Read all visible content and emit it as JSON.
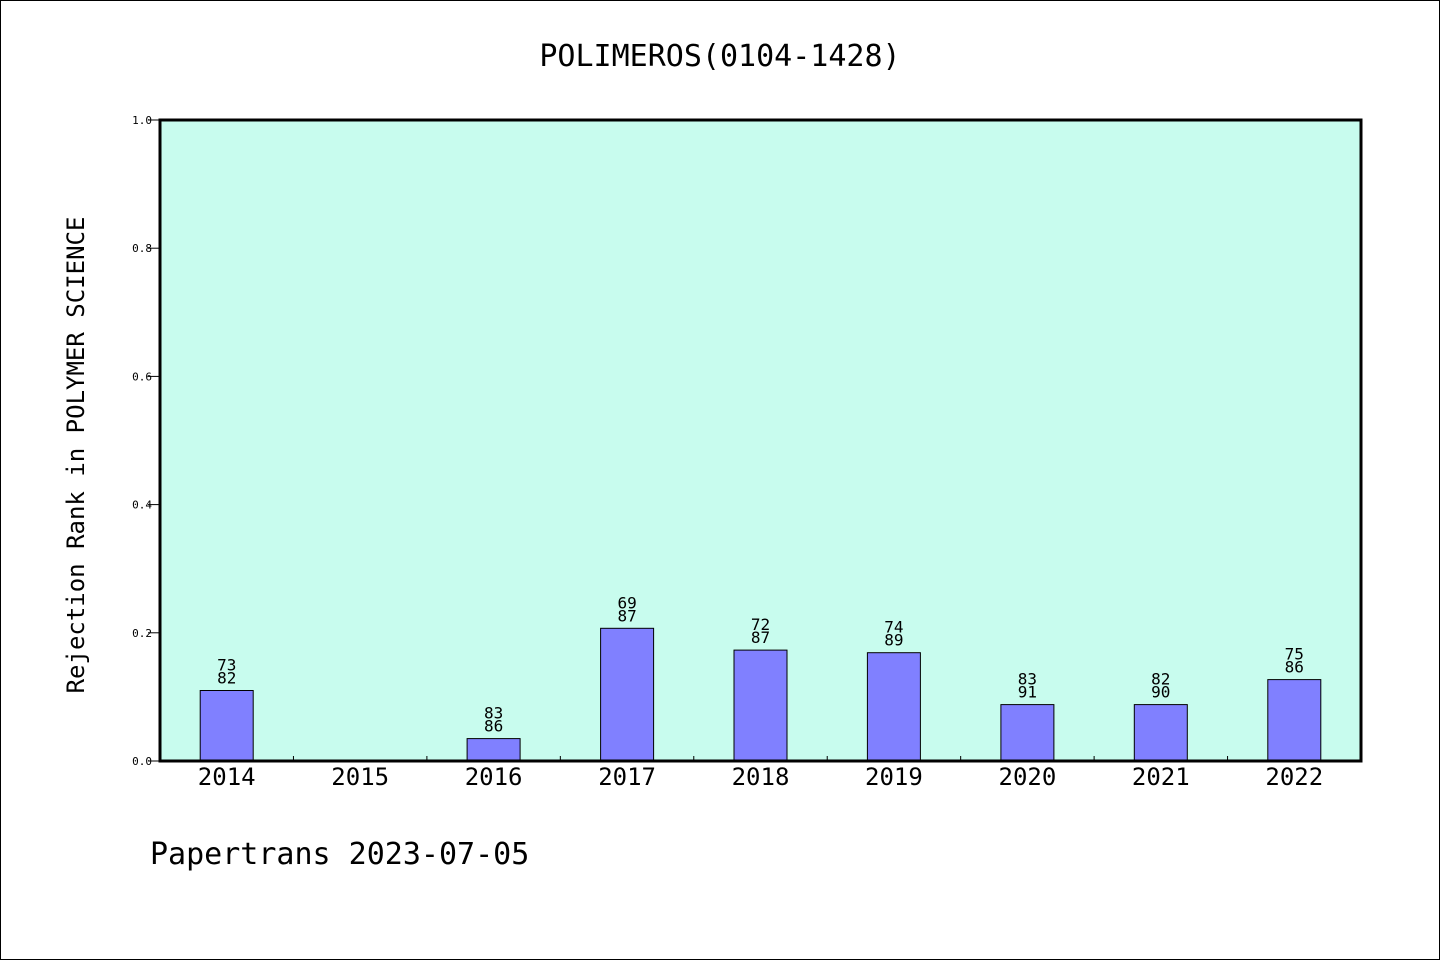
{
  "chart_data": {
    "type": "bar",
    "title": "POLIMEROS(0104-1428)",
    "xlabel": "",
    "ylabel": "Rejection Rank in POLYMER SCIENCE",
    "ylim": [
      0,
      1
    ],
    "yticks": [
      "0.0",
      "0.2",
      "0.4",
      "0.6",
      "0.8",
      "1.0"
    ],
    "grid": false,
    "categories": [
      "2014",
      "2015",
      "2016",
      "2017",
      "2018",
      "2019",
      "2020",
      "2021",
      "2022"
    ],
    "values": [
      0.11,
      0,
      0.035,
      0.207,
      0.173,
      0.169,
      0.088,
      0.088,
      0.127
    ],
    "labels": [
      [
        "73",
        "82"
      ],
      null,
      [
        "83",
        "86"
      ],
      [
        "69",
        "87"
      ],
      [
        "72",
        "87"
      ],
      [
        "74",
        "89"
      ],
      [
        "83",
        "91"
      ],
      [
        "82",
        "90"
      ],
      [
        "75",
        "86"
      ]
    ],
    "colors": {
      "plot_background": "#c8fcee",
      "bar_fill": "#8080ff",
      "bar_stroke": "#000000"
    }
  },
  "footer": "Papertrans 2023-07-05"
}
